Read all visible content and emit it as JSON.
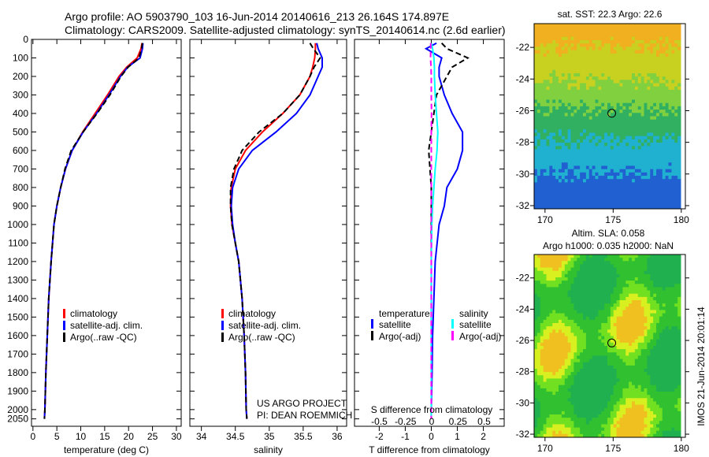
{
  "title": {
    "line1": "Argo profile: AO 5903790_103 16-Jun-2014 20140616_213 26.164S 174.897E",
    "line2": "Climatology: CARS2009. Satellite-adjusted climatology: synTS_20140614.nc (2.6d earlier)"
  },
  "credit": {
    "line1": "US ARGO PROJECT",
    "line2": "PI: DEAN ROEMMICH"
  },
  "stamp": "IMOS 21-Jun-2014 20:01:14",
  "chart_data": [
    {
      "type": "line",
      "name": "temperature",
      "xlabel": "temperature (deg C)",
      "xlim": [
        -0.3,
        31
      ],
      "ylim": [
        0,
        2090
      ],
      "xticks": [
        0,
        5,
        10,
        15,
        20,
        25,
        30
      ],
      "yticks": [
        0,
        100,
        200,
        300,
        400,
        500,
        600,
        700,
        800,
        900,
        1000,
        1100,
        1200,
        1300,
        1400,
        1500,
        1600,
        1700,
        1800,
        1900,
        2000,
        2050
      ],
      "depth": [
        20,
        50,
        100,
        150,
        200,
        300,
        400,
        500,
        600,
        700,
        800,
        900,
        1000,
        1200,
        1400,
        1600,
        1800,
        2000,
        2050
      ],
      "series": [
        {
          "name": "climatology",
          "color": "#ff0000",
          "dash": false,
          "values": [
            22.8,
            22.6,
            21.8,
            19.6,
            18.0,
            15.6,
            13.0,
            10.4,
            8.2,
            6.8,
            5.8,
            5.0,
            4.4,
            3.8,
            3.3,
            3.0,
            2.7,
            2.5,
            2.4
          ]
        },
        {
          "name": "satellite-adj. clim.",
          "color": "#0000ff",
          "dash": false,
          "values": [
            23.0,
            22.9,
            22.4,
            19.8,
            18.3,
            15.9,
            13.3,
            10.5,
            8.2,
            6.8,
            5.8,
            5.0,
            4.4,
            3.8,
            3.3,
            3.0,
            2.7,
            2.5,
            2.4
          ]
        },
        {
          "name": "Argo(..raw -QC)",
          "color": "#000000",
          "dash": true,
          "values": [
            22.9,
            22.7,
            22.2,
            19.9,
            18.4,
            16.1,
            13.4,
            10.5,
            8.0,
            6.7,
            5.8,
            5.0,
            4.4,
            3.8,
            3.3,
            3.0,
            2.7,
            2.5,
            2.4
          ]
        }
      ]
    },
    {
      "type": "line",
      "name": "salinity",
      "xlabel": "salinity",
      "xlim": [
        33.83,
        36.14
      ],
      "ylim": [
        0,
        2090
      ],
      "xticks": [
        34,
        34.5,
        35,
        35.5,
        36
      ],
      "depth": [
        20,
        50,
        100,
        150,
        200,
        300,
        400,
        500,
        600,
        700,
        800,
        900,
        1000,
        1100,
        1200,
        1400,
        1600,
        1800,
        2000,
        2050
      ],
      "series": [
        {
          "name": "climatology",
          "color": "#ff0000",
          "dash": false,
          "values": [
            35.68,
            35.68,
            35.67,
            35.64,
            35.6,
            35.45,
            35.2,
            34.9,
            34.65,
            34.5,
            34.44,
            34.43,
            34.45,
            34.5,
            34.55,
            34.6,
            34.63,
            34.65,
            34.66,
            34.67
          ]
        },
        {
          "name": "satellite-adj. clim.",
          "color": "#0000ff",
          "dash": false,
          "values": [
            35.7,
            35.72,
            35.78,
            35.78,
            35.72,
            35.6,
            35.4,
            35.1,
            34.75,
            34.55,
            34.46,
            34.44,
            34.46,
            34.5,
            34.55,
            34.6,
            34.63,
            34.65,
            34.66,
            34.67
          ]
        },
        {
          "name": "Argo(..raw -QC)",
          "color": "#000000",
          "dash": true,
          "values": [
            35.6,
            35.65,
            35.75,
            35.66,
            35.6,
            35.45,
            35.2,
            34.85,
            34.6,
            34.48,
            34.43,
            34.43,
            34.45,
            34.5,
            34.55,
            34.6,
            34.63,
            34.65,
            34.66,
            34.67
          ]
        }
      ]
    },
    {
      "type": "line",
      "name": "difference",
      "xlabel": "T difference from climatology",
      "xlabel2": "S difference from climatology",
      "xlim": [
        -2.95,
        2.8
      ],
      "ylim": [
        0,
        2090
      ],
      "xticks": [
        -2,
        -1,
        0,
        1,
        2
      ],
      "xticks2": [
        -0.5,
        -0.25,
        0,
        0.25,
        0.5
      ],
      "depth": [
        20,
        50,
        100,
        150,
        200,
        300,
        400,
        500,
        600,
        700,
        800,
        900,
        1000,
        1200,
        1400,
        1600,
        1800,
        2000,
        2050
      ],
      "series": [
        {
          "name": "temperature satellite",
          "color": "#0000ff",
          "dash": false,
          "values": [
            0.2,
            -0.2,
            0.4,
            0.3,
            0.3,
            0.5,
            0.8,
            1.2,
            1.2,
            1.0,
            0.6,
            0.5,
            0.3,
            0.15,
            0.1,
            0.05,
            0.03,
            0.0,
            0.0
          ]
        },
        {
          "name": "temperature Argo(-adj)",
          "color": "#000000",
          "dash": true,
          "values": [
            0.4,
            0.6,
            1.4,
            0.8,
            0.6,
            0.2,
            0.1,
            0.0,
            -0.1,
            -0.05,
            0.0,
            0.0,
            0.0,
            0.0,
            0.0,
            0.0,
            0.0,
            0.0,
            0.0
          ]
        },
        {
          "name": "salinity satellite",
          "color": "#00ffff",
          "dash": false,
          "values": [
            0.0,
            0.05,
            0.1,
            0.12,
            0.12,
            0.15,
            0.2,
            0.25,
            0.22,
            0.15,
            0.1,
            0.05,
            0.02,
            0.0,
            0.0,
            0.0,
            0.0,
            0.0,
            0.0
          ]
        },
        {
          "name": "salinity Argo(-adj)",
          "color": "#ff00ff",
          "dash": true,
          "values": [
            -0.02,
            -0.02,
            -0.03,
            -0.01,
            0.0,
            0.0,
            0.01,
            0.0,
            0.0,
            0.0,
            0.0,
            0.0,
            0.0,
            0.0,
            0.0,
            0.0,
            0.0,
            0.0,
            0.0
          ]
        }
      ],
      "legend": {
        "t_head": "temperature",
        "s_head": "salinity",
        "t1": "satellite",
        "t2": "Argo(-adj)",
        "s1": "satellite",
        "s2": "Argo(-adj)"
      }
    },
    {
      "type": "heatmap",
      "name": "sst-map",
      "title": "sat. SST: 22.3 Argo: 22.6",
      "xlim": [
        169.2,
        180.3
      ],
      "ylim": [
        -32.2,
        -20.5
      ],
      "xticks": [
        170,
        175,
        180
      ],
      "yticks": [
        -22,
        -24,
        -26,
        -28,
        -30,
        -32
      ],
      "marker": [
        174.897,
        -26.164
      ]
    },
    {
      "type": "heatmap",
      "name": "sla-map",
      "title": "Altim. SLA: 0.058",
      "title2": "Argo h1000: 0.035 h2000: NaN",
      "xlim": [
        169.2,
        180.3
      ],
      "ylim": [
        -32.2,
        -20.5
      ],
      "xticks": [
        170,
        175,
        180
      ],
      "yticks": [
        -22,
        -24,
        -26,
        -28,
        -30,
        -32
      ],
      "marker": [
        174.897,
        -26.164
      ]
    }
  ]
}
